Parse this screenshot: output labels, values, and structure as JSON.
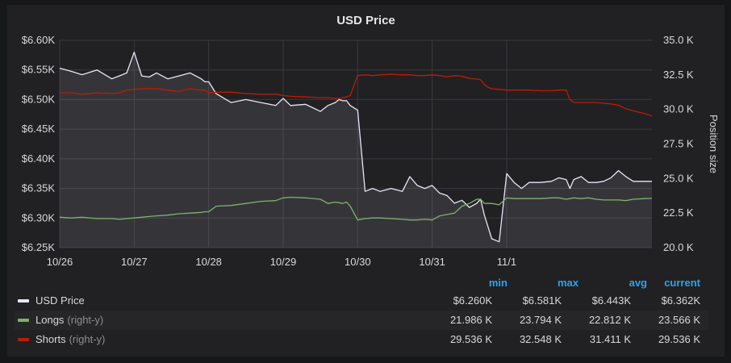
{
  "panel": {
    "title": "USD Price",
    "right_axis_label": "Position size"
  },
  "legend": {
    "headers": [
      "min",
      "max",
      "avg",
      "current"
    ],
    "rows": [
      {
        "name": "USD Price",
        "axis": "",
        "color": "#e8e6f5",
        "min": "$6.260K",
        "max": "$6.581K",
        "avg": "$6.443K",
        "current": "$6.362K"
      },
      {
        "name": "Longs",
        "axis": "(right-y)",
        "color": "#7eb26d",
        "min": "21.986 K",
        "max": "23.794 K",
        "avg": "22.812 K",
        "current": "23.566 K"
      },
      {
        "name": "Shorts",
        "axis": "(right-y)",
        "color": "#bf1b00",
        "min": "29.536 K",
        "max": "32.548 K",
        "avg": "31.411 K",
        "current": "29.536 K"
      }
    ]
  },
  "chart_data": {
    "type": "line",
    "title": "USD Price",
    "x": [
      0,
      0.15,
      0.3,
      0.5,
      0.7,
      0.8,
      0.9,
      1.0,
      1.1,
      1.2,
      1.3,
      1.45,
      1.6,
      1.75,
      1.9,
      1.95,
      2.0,
      2.1,
      2.3,
      2.5,
      2.7,
      2.9,
      3.0,
      3.1,
      3.3,
      3.5,
      3.6,
      3.7,
      3.75,
      3.8,
      3.85,
      3.9,
      4.0,
      4.1,
      4.2,
      4.3,
      4.45,
      4.6,
      4.7,
      4.8,
      4.9,
      5.0,
      5.1,
      5.2,
      5.3,
      5.4,
      5.5,
      5.6,
      5.65,
      5.7,
      5.75,
      5.8,
      5.9,
      6.0,
      6.1,
      6.2,
      6.3,
      6.45,
      6.6,
      6.7,
      6.8,
      6.85,
      6.9,
      7.0,
      7.1,
      7.2,
      7.3,
      7.4,
      7.5,
      7.6,
      7.7,
      7.85,
      7.95
    ],
    "x_tick_labels": [
      "10/26",
      "10/27",
      "10/28",
      "10/29",
      "10/30",
      "10/31",
      "11/1"
    ],
    "y_left": {
      "ticks": [
        "$6.25K",
        "$6.30K",
        "$6.35K",
        "$6.40K",
        "$6.45K",
        "$6.50K",
        "$6.55K",
        "$6.60K"
      ],
      "ylim": [
        6250,
        6600
      ]
    },
    "y_right": {
      "label": "Position size",
      "ticks": [
        "20.0 K",
        "22.5 K",
        "25.0 K",
        "27.5 K",
        "30.0 K",
        "32.5 K",
        "35.0 K"
      ],
      "ylim": [
        20000,
        35000
      ]
    },
    "series": [
      {
        "name": "USD Price",
        "axis": "left",
        "color": "#e8e6f5",
        "fill": true,
        "values": [
          6553,
          6548,
          6542,
          6550,
          6535,
          6540,
          6545,
          6580,
          6540,
          6538,
          6545,
          6535,
          6540,
          6545,
          6535,
          6530,
          6530,
          6510,
          6495,
          6500,
          6495,
          6490,
          6502,
          6490,
          6492,
          6480,
          6490,
          6495,
          6500,
          6498,
          6498,
          6490,
          6482,
          6345,
          6350,
          6345,
          6350,
          6345,
          6370,
          6355,
          6350,
          6355,
          6342,
          6338,
          6325,
          6330,
          6318,
          6325,
          6332,
          6305,
          6285,
          6265,
          6260,
          6375,
          6360,
          6350,
          6360,
          6360,
          6362,
          6368,
          6365,
          6350,
          6365,
          6370,
          6360,
          6360,
          6362,
          6368,
          6380,
          6370,
          6362,
          6362,
          6362
        ]
      },
      {
        "name": "Longs",
        "axis": "right",
        "color": "#7eb26d",
        "values": [
          22200,
          22150,
          22200,
          22100,
          22100,
          22050,
          22100,
          22150,
          22200,
          22250,
          22300,
          22350,
          22450,
          22500,
          22550,
          22600,
          22600,
          23000,
          23050,
          23200,
          23350,
          23400,
          23600,
          23650,
          23600,
          23500,
          23200,
          23300,
          23250,
          23200,
          23300,
          23000,
          22000,
          22100,
          22150,
          22150,
          22100,
          22050,
          22000,
          22000,
          22050,
          22000,
          22300,
          22400,
          22500,
          23000,
          23200,
          23500,
          23500,
          23200,
          23200,
          23200,
          23100,
          23600,
          23550,
          23550,
          23550,
          23550,
          23600,
          23600,
          23500,
          23550,
          23600,
          23550,
          23600,
          23500,
          23450,
          23450,
          23450,
          23400,
          23500,
          23550,
          23566
        ]
      },
      {
        "name": "Shorts",
        "axis": "right",
        "color": "#bf1b00",
        "values": [
          31200,
          31200,
          31100,
          31200,
          31150,
          31200,
          31400,
          31450,
          31500,
          31500,
          31500,
          31400,
          31300,
          31500,
          31400,
          31400,
          31200,
          31250,
          31250,
          31150,
          31100,
          31100,
          31000,
          30950,
          30900,
          30850,
          30850,
          30800,
          30800,
          30850,
          30900,
          31000,
          32450,
          32500,
          32450,
          32500,
          32548,
          32500,
          32500,
          32450,
          32450,
          32500,
          32450,
          32350,
          32450,
          32400,
          32250,
          32200,
          32150,
          31800,
          31600,
          31500,
          31450,
          31400,
          31400,
          31400,
          31400,
          31350,
          31350,
          31400,
          31400,
          30700,
          30500,
          30500,
          30500,
          30500,
          30450,
          30400,
          30300,
          30050,
          29900,
          29700,
          29536
        ]
      }
    ]
  }
}
